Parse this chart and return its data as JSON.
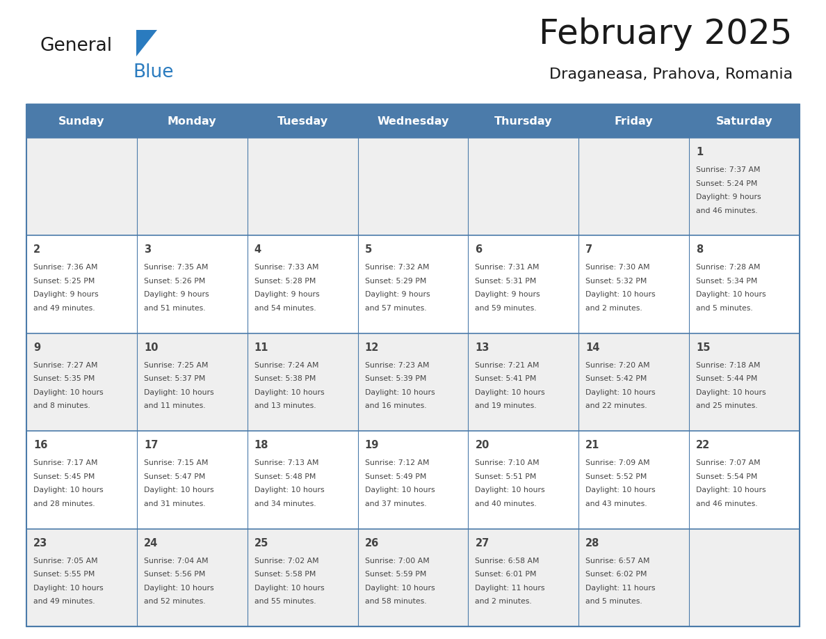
{
  "title": "February 2025",
  "subtitle": "Draganeasa, Prahova, Romania",
  "days_of_week": [
    "Sunday",
    "Monday",
    "Tuesday",
    "Wednesday",
    "Thursday",
    "Friday",
    "Saturday"
  ],
  "header_bg": "#4b7baa",
  "header_text_color": "#ffffff",
  "cell_bg_odd": "#efefef",
  "cell_bg_even": "#ffffff",
  "border_color": "#4b7baa",
  "text_color": "#444444",
  "title_color": "#1a1a1a",
  "subtitle_color": "#1a1a1a",
  "logo_black": "#1a1a1a",
  "logo_blue_color": "#2a7bbf",
  "calendar_data": [
    [
      null,
      null,
      null,
      null,
      null,
      null,
      {
        "day": "1",
        "sunrise": "7:37 AM",
        "sunset": "5:24 PM",
        "daylight": "9 hours",
        "daylight2": "and 46 minutes."
      }
    ],
    [
      {
        "day": "2",
        "sunrise": "7:36 AM",
        "sunset": "5:25 PM",
        "daylight": "9 hours",
        "daylight2": "and 49 minutes."
      },
      {
        "day": "3",
        "sunrise": "7:35 AM",
        "sunset": "5:26 PM",
        "daylight": "9 hours",
        "daylight2": "and 51 minutes."
      },
      {
        "day": "4",
        "sunrise": "7:33 AM",
        "sunset": "5:28 PM",
        "daylight": "9 hours",
        "daylight2": "and 54 minutes."
      },
      {
        "day": "5",
        "sunrise": "7:32 AM",
        "sunset": "5:29 PM",
        "daylight": "9 hours",
        "daylight2": "and 57 minutes."
      },
      {
        "day": "6",
        "sunrise": "7:31 AM",
        "sunset": "5:31 PM",
        "daylight": "9 hours",
        "daylight2": "and 59 minutes."
      },
      {
        "day": "7",
        "sunrise": "7:30 AM",
        "sunset": "5:32 PM",
        "daylight": "10 hours",
        "daylight2": "and 2 minutes."
      },
      {
        "day": "8",
        "sunrise": "7:28 AM",
        "sunset": "5:34 PM",
        "daylight": "10 hours",
        "daylight2": "and 5 minutes."
      }
    ],
    [
      {
        "day": "9",
        "sunrise": "7:27 AM",
        "sunset": "5:35 PM",
        "daylight": "10 hours",
        "daylight2": "and 8 minutes."
      },
      {
        "day": "10",
        "sunrise": "7:25 AM",
        "sunset": "5:37 PM",
        "daylight": "10 hours",
        "daylight2": "and 11 minutes."
      },
      {
        "day": "11",
        "sunrise": "7:24 AM",
        "sunset": "5:38 PM",
        "daylight": "10 hours",
        "daylight2": "and 13 minutes."
      },
      {
        "day": "12",
        "sunrise": "7:23 AM",
        "sunset": "5:39 PM",
        "daylight": "10 hours",
        "daylight2": "and 16 minutes."
      },
      {
        "day": "13",
        "sunrise": "7:21 AM",
        "sunset": "5:41 PM",
        "daylight": "10 hours",
        "daylight2": "and 19 minutes."
      },
      {
        "day": "14",
        "sunrise": "7:20 AM",
        "sunset": "5:42 PM",
        "daylight": "10 hours",
        "daylight2": "and 22 minutes."
      },
      {
        "day": "15",
        "sunrise": "7:18 AM",
        "sunset": "5:44 PM",
        "daylight": "10 hours",
        "daylight2": "and 25 minutes."
      }
    ],
    [
      {
        "day": "16",
        "sunrise": "7:17 AM",
        "sunset": "5:45 PM",
        "daylight": "10 hours",
        "daylight2": "and 28 minutes."
      },
      {
        "day": "17",
        "sunrise": "7:15 AM",
        "sunset": "5:47 PM",
        "daylight": "10 hours",
        "daylight2": "and 31 minutes."
      },
      {
        "day": "18",
        "sunrise": "7:13 AM",
        "sunset": "5:48 PM",
        "daylight": "10 hours",
        "daylight2": "and 34 minutes."
      },
      {
        "day": "19",
        "sunrise": "7:12 AM",
        "sunset": "5:49 PM",
        "daylight": "10 hours",
        "daylight2": "and 37 minutes."
      },
      {
        "day": "20",
        "sunrise": "7:10 AM",
        "sunset": "5:51 PM",
        "daylight": "10 hours",
        "daylight2": "and 40 minutes."
      },
      {
        "day": "21",
        "sunrise": "7:09 AM",
        "sunset": "5:52 PM",
        "daylight": "10 hours",
        "daylight2": "and 43 minutes."
      },
      {
        "day": "22",
        "sunrise": "7:07 AM",
        "sunset": "5:54 PM",
        "daylight": "10 hours",
        "daylight2": "and 46 minutes."
      }
    ],
    [
      {
        "day": "23",
        "sunrise": "7:05 AM",
        "sunset": "5:55 PM",
        "daylight": "10 hours",
        "daylight2": "and 49 minutes."
      },
      {
        "day": "24",
        "sunrise": "7:04 AM",
        "sunset": "5:56 PM",
        "daylight": "10 hours",
        "daylight2": "and 52 minutes."
      },
      {
        "day": "25",
        "sunrise": "7:02 AM",
        "sunset": "5:58 PM",
        "daylight": "10 hours",
        "daylight2": "and 55 minutes."
      },
      {
        "day": "26",
        "sunrise": "7:00 AM",
        "sunset": "5:59 PM",
        "daylight": "10 hours",
        "daylight2": "and 58 minutes."
      },
      {
        "day": "27",
        "sunrise": "6:58 AM",
        "sunset": "6:01 PM",
        "daylight": "11 hours",
        "daylight2": "and 2 minutes."
      },
      {
        "day": "28",
        "sunrise": "6:57 AM",
        "sunset": "6:02 PM",
        "daylight": "11 hours",
        "daylight2": "and 5 minutes."
      },
      null
    ]
  ]
}
